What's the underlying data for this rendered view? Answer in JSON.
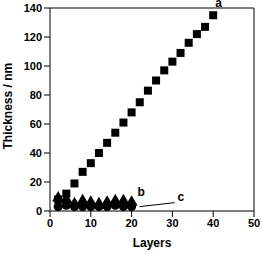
{
  "chart_data": {
    "type": "scatter",
    "x_label": "Layers",
    "y_label": "Thickness / nm",
    "xlim": [
      0,
      50
    ],
    "xticks": [
      0,
      10,
      20,
      30,
      40,
      50
    ],
    "ylim": [
      0,
      140
    ],
    "yticks": [
      0,
      20,
      40,
      60,
      80,
      100,
      120,
      140
    ],
    "grid": false,
    "series": [
      {
        "name": "a",
        "color": "#000000",
        "marker": "square",
        "x": [
          2,
          4,
          6,
          8,
          10,
          12,
          14,
          16,
          18,
          20,
          22,
          24,
          26,
          28,
          30,
          32,
          34,
          36,
          38,
          40
        ],
        "values": [
          8,
          12,
          19,
          27,
          33,
          40,
          47,
          54,
          61,
          68,
          75,
          83,
          90,
          97,
          103,
          109,
          116,
          122,
          127,
          135
        ]
      },
      {
        "name": "b",
        "color": "#000000",
        "marker": "triangle",
        "x": [
          2,
          4,
          6,
          8,
          10,
          12,
          14,
          16,
          18,
          20
        ],
        "values": [
          9,
          8,
          5,
          7,
          6,
          5,
          6,
          7,
          7,
          6
        ]
      },
      {
        "name": "c",
        "color": "#000000",
        "marker": "circle",
        "x": [
          2,
          4,
          6,
          8,
          10,
          12,
          14,
          16,
          18,
          20
        ],
        "values": [
          3,
          4,
          3,
          3,
          3,
          3,
          3,
          4,
          3,
          3
        ]
      }
    ]
  }
}
